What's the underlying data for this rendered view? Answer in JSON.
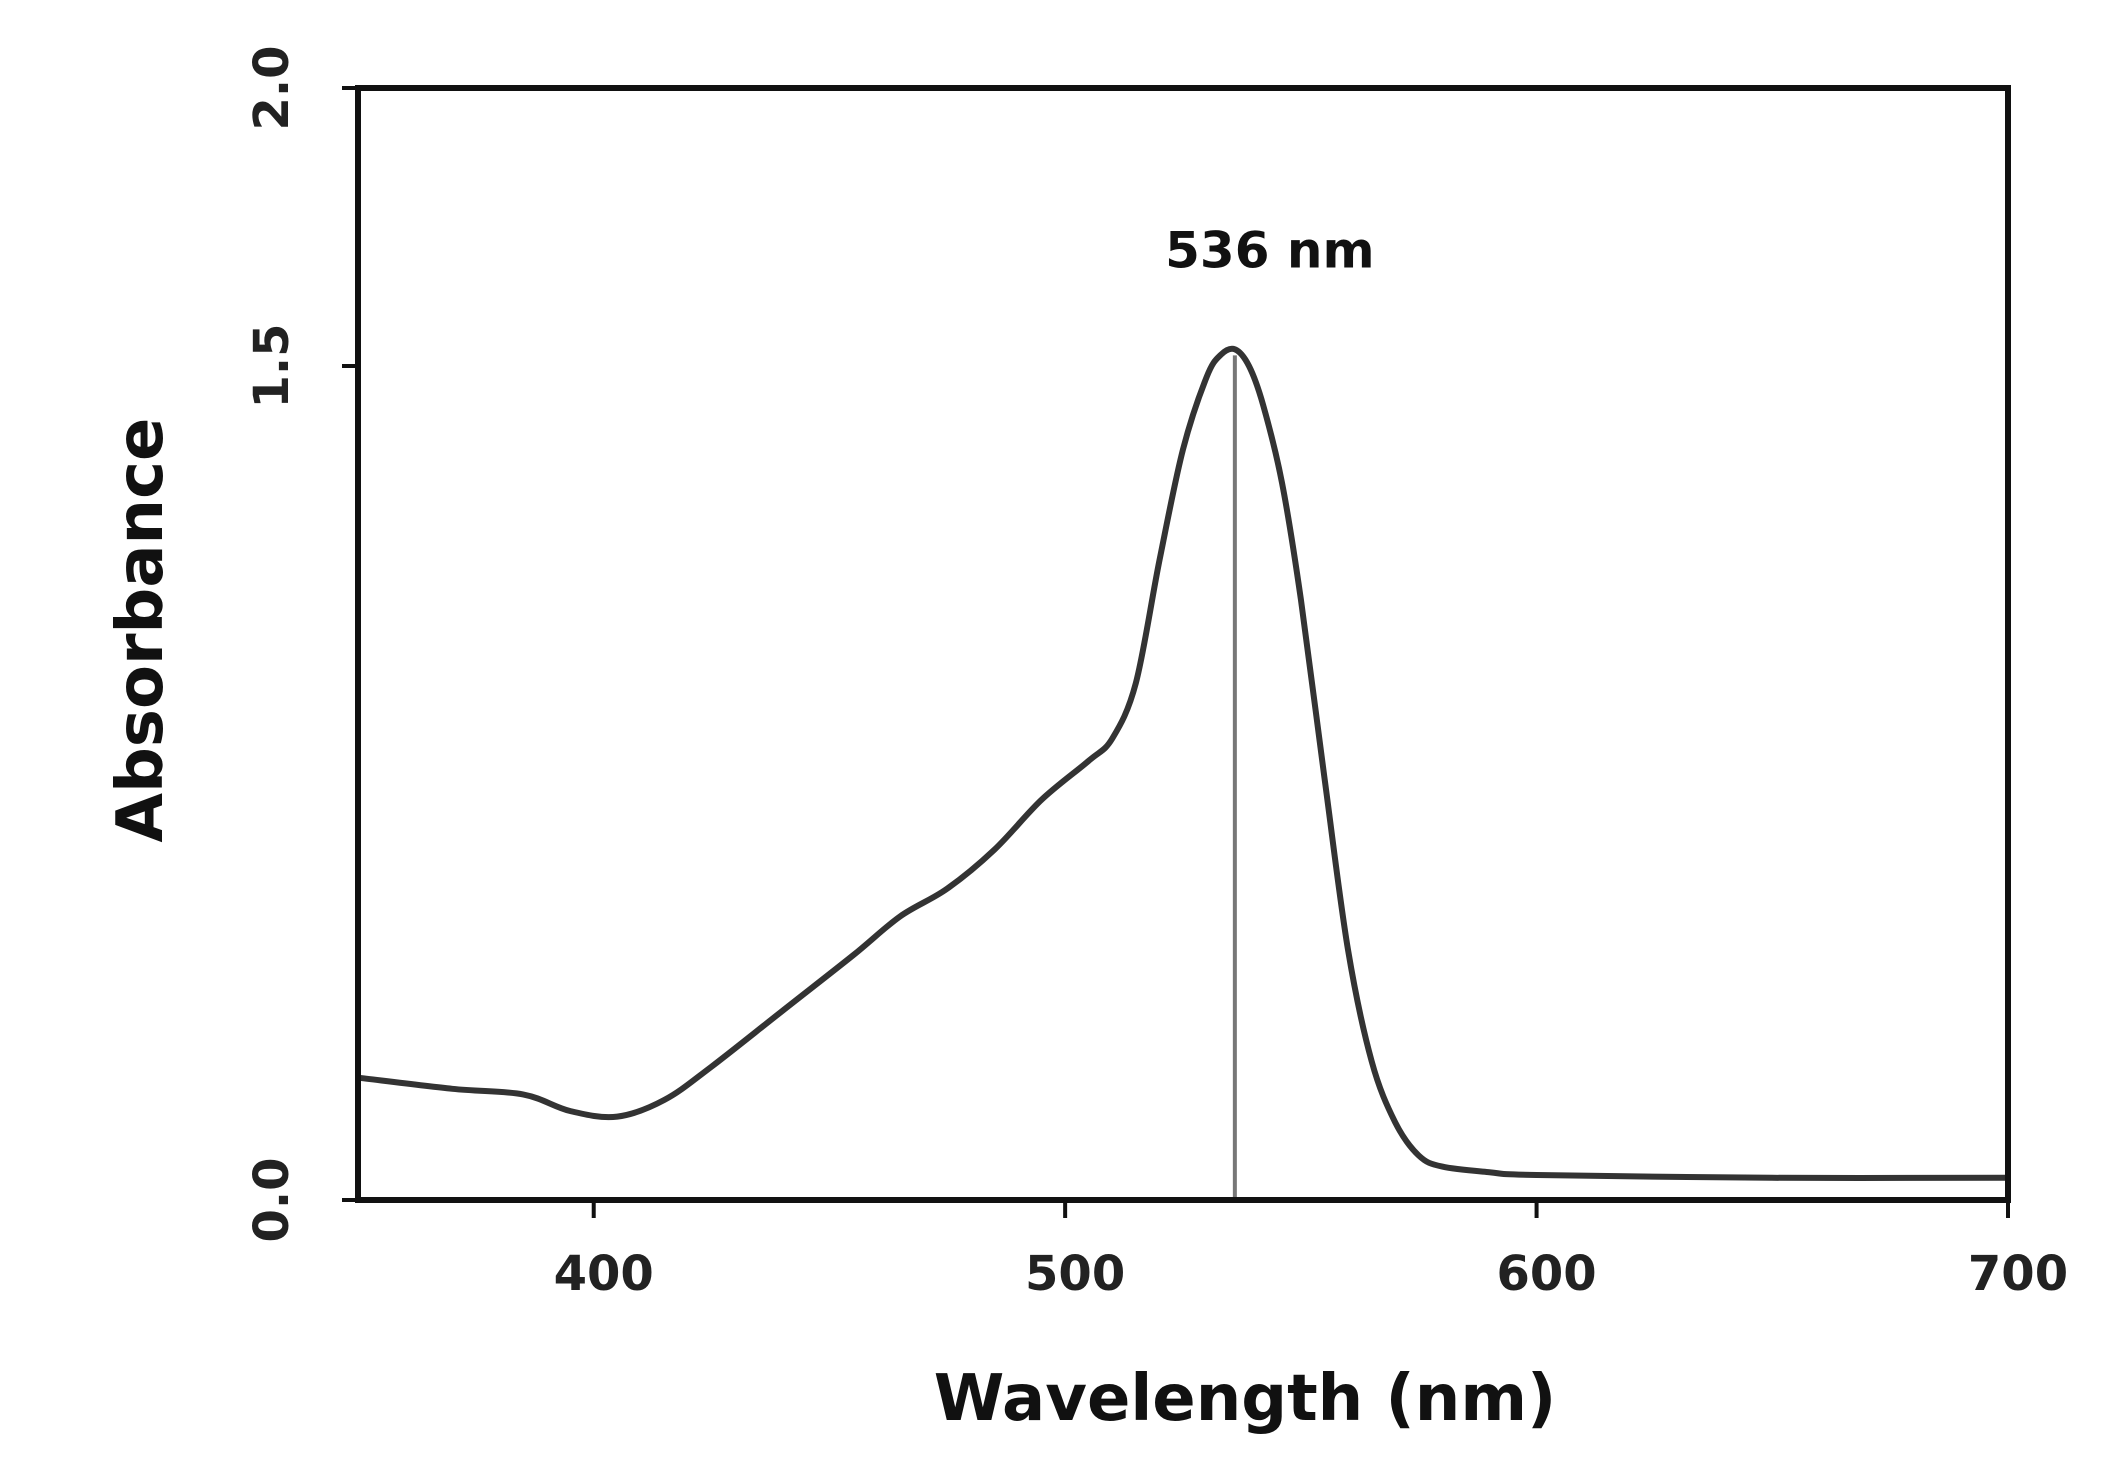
{
  "chart_data": {
    "type": "line",
    "xlabel": "Wavelength (nm)",
    "ylabel": "Absorbance",
    "xlim": [
      350,
      700
    ],
    "ylim": [
      0.0,
      2.0
    ],
    "x_ticks": [
      400,
      500,
      600,
      700
    ],
    "x_tick_labels": [
      "400",
      "500",
      "600",
      "700"
    ],
    "y_ticks": [
      0.0,
      1.5,
      2.0
    ],
    "y_tick_labels": [
      "0.0",
      "1.5",
      "2.0"
    ],
    "grid": false,
    "series": [
      {
        "color": "#333333",
        "x": [
          350,
          370,
          385,
          395,
          405,
          415,
          425,
          440,
          455,
          465,
          475,
          485,
          495,
          505,
          510,
          515,
          520,
          525,
          530,
          533,
          536,
          539,
          542,
          546,
          550,
          555,
          560,
          565,
          570,
          575,
          580,
          590,
          600,
          650,
          700
        ],
        "y": [
          0.22,
          0.2,
          0.19,
          0.16,
          0.15,
          0.18,
          0.24,
          0.34,
          0.44,
          0.51,
          0.56,
          0.63,
          0.72,
          0.79,
          0.83,
          0.93,
          1.15,
          1.35,
          1.48,
          1.52,
          1.53,
          1.5,
          1.43,
          1.29,
          1.08,
          0.76,
          0.45,
          0.25,
          0.14,
          0.08,
          0.06,
          0.05,
          0.045,
          0.04,
          0.04
        ]
      }
    ],
    "annotations": [
      {
        "text": "536 nm",
        "x": 536,
        "y": 1.53,
        "marker": "vertical-line"
      }
    ]
  }
}
